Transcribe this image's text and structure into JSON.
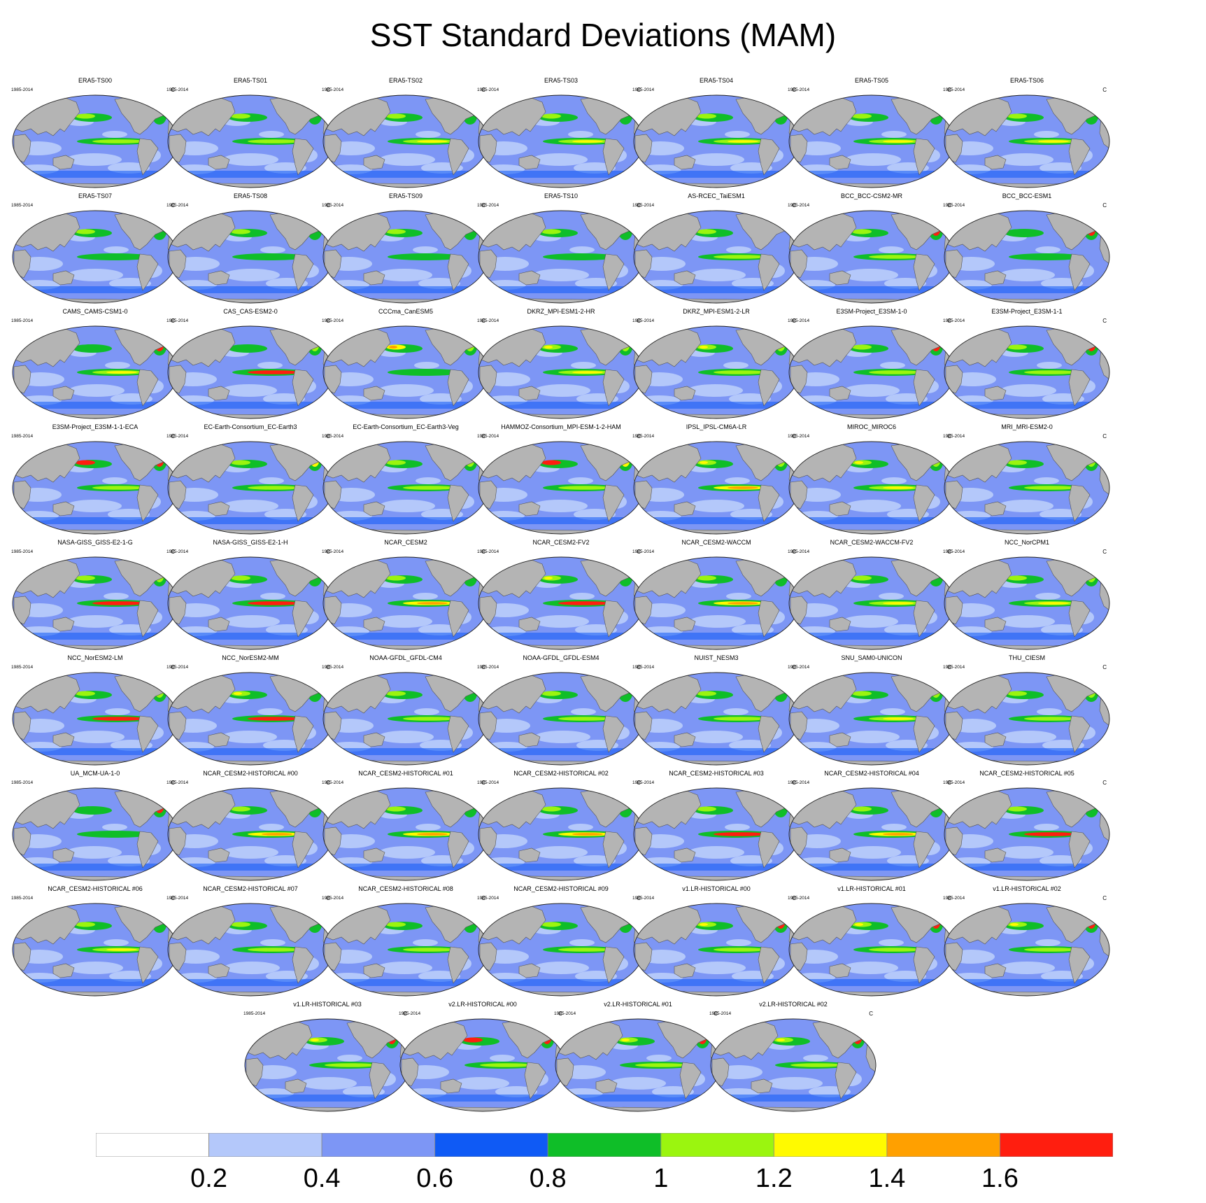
{
  "title": "SST Standard Deviations (MAM)",
  "panel_period": "1985-2014",
  "panel_units": "C",
  "colors": {
    "land": "#b4b4b4",
    "coast": "#555555",
    "levels": [
      "#ffffff",
      "#b4c8fa",
      "#7d96f5",
      "#0f5af5",
      "#0fbe28",
      "#9bf50f",
      "#fffa00",
      "#ffa000",
      "#ff1e0f"
    ]
  },
  "chart_data": {
    "type": "heatmap",
    "description_type": "small-multiple global SST standard deviation maps",
    "panels": [
      {
        "name": "ERA5-TS00",
        "enso": 1.0,
        "kuro": 1.0,
        "atl": 0.8
      },
      {
        "name": "ERA5-TS01",
        "enso": 1.0,
        "kuro": 1.0,
        "atl": 0.8
      },
      {
        "name": "ERA5-TS02",
        "enso": 1.2,
        "kuro": 1.0,
        "atl": 0.8
      },
      {
        "name": "ERA5-TS03",
        "enso": 1.2,
        "kuro": 1.0,
        "atl": 0.8
      },
      {
        "name": "ERA5-TS04",
        "enso": 1.2,
        "kuro": 1.0,
        "atl": 0.8
      },
      {
        "name": "ERA5-TS05",
        "enso": 1.2,
        "kuro": 1.0,
        "atl": 0.8
      },
      {
        "name": "ERA5-TS06",
        "enso": 1.2,
        "kuro": 1.0,
        "atl": 0.8
      },
      {
        "name": "ERA5-TS07",
        "enso": 0.8,
        "kuro": 1.0,
        "atl": 0.8
      },
      {
        "name": "ERA5-TS08",
        "enso": 0.8,
        "kuro": 1.0,
        "atl": 0.8
      },
      {
        "name": "ERA5-TS09",
        "enso": 0.8,
        "kuro": 1.0,
        "atl": 0.8
      },
      {
        "name": "ERA5-TS10",
        "enso": 0.8,
        "kuro": 1.0,
        "atl": 0.8
      },
      {
        "name": "AS-RCEC_TaiESM1",
        "enso": 1.0,
        "kuro": 1.0,
        "atl": 0.6
      },
      {
        "name": "BCC_BCC-CSM2-MR",
        "enso": 1.0,
        "kuro": 1.0,
        "atl": 1.6
      },
      {
        "name": "BCC_BCC-ESM1",
        "enso": 0.8,
        "kuro": 0.8,
        "atl": 1.6
      },
      {
        "name": "CAMS_CAMS-CSM1-0",
        "enso": 1.2,
        "kuro": 0.8,
        "atl": 1.8
      },
      {
        "name": "CAS_CAS-ESM2-0",
        "enso": 1.6,
        "kuro": 0.8,
        "atl": 1.0
      },
      {
        "name": "CCCma_CanESM5",
        "enso": 0.8,
        "kuro": 1.4,
        "atl": 1.0
      },
      {
        "name": "DKRZ_MPI-ESM1-2-HR",
        "enso": 1.2,
        "kuro": 1.2,
        "atl": 1.2
      },
      {
        "name": "DKRZ_MPI-ESM1-2-LR",
        "enso": 1.0,
        "kuro": 1.2,
        "atl": 1.2
      },
      {
        "name": "E3SM-Project_E3SM-1-0",
        "enso": 1.0,
        "kuro": 1.0,
        "atl": 1.6
      },
      {
        "name": "E3SM-Project_E3SM-1-1",
        "enso": 1.0,
        "kuro": 1.0,
        "atl": 1.8
      },
      {
        "name": "E3SM-Project_E3SM-1-1-ECA",
        "enso": 1.0,
        "kuro": 1.8,
        "atl": 1.6
      },
      {
        "name": "EC-Earth-Consortium_EC-Earth3",
        "enso": 1.0,
        "kuro": 1.0,
        "atl": 1.4
      },
      {
        "name": "EC-Earth-Consortium_EC-Earth3-Veg",
        "enso": 1.0,
        "kuro": 1.0,
        "atl": 1.2
      },
      {
        "name": "HAMMOZ-Consortium_MPI-ESM-1-2-HAM",
        "enso": 1.0,
        "kuro": 1.6,
        "atl": 1.4
      },
      {
        "name": "IPSL_IPSL-CM6A-LR",
        "enso": 1.4,
        "kuro": 1.2,
        "atl": 1.2
      },
      {
        "name": "MIROC_MIROC6",
        "enso": 1.2,
        "kuro": 1.2,
        "atl": 1.0
      },
      {
        "name": "MRI_MRI-ESM2-0",
        "enso": 1.0,
        "kuro": 1.0,
        "atl": 1.2
      },
      {
        "name": "NASA-GISS_GISS-E2-1-G",
        "enso": 1.8,
        "kuro": 1.0,
        "atl": 1.0
      },
      {
        "name": "NASA-GISS_GISS-E2-1-H",
        "enso": 1.8,
        "kuro": 1.0,
        "atl": 0.8
      },
      {
        "name": "NCAR_CESM2",
        "enso": 1.4,
        "kuro": 1.0,
        "atl": 0.8
      },
      {
        "name": "NCAR_CESM2-FV2",
        "enso": 1.8,
        "kuro": 1.2,
        "atl": 0.8
      },
      {
        "name": "NCAR_CESM2-WACCM",
        "enso": 1.4,
        "kuro": 1.0,
        "atl": 0.8
      },
      {
        "name": "NCAR_CESM2-WACCM-FV2",
        "enso": 1.2,
        "kuro": 1.0,
        "atl": 0.8
      },
      {
        "name": "NCC_NorCPM1",
        "enso": 1.2,
        "kuro": 1.0,
        "atl": 1.0
      },
      {
        "name": "NCC_NorESM2-LM",
        "enso": 1.8,
        "kuro": 1.0,
        "atl": 1.2
      },
      {
        "name": "NCC_NorESM2-MM",
        "enso": 1.8,
        "kuro": 1.2,
        "atl": 0.8
      },
      {
        "name": "NOAA-GFDL_GFDL-CM4",
        "enso": 1.0,
        "kuro": 1.0,
        "atl": 0.8
      },
      {
        "name": "NOAA-GFDL_GFDL-ESM4",
        "enso": 1.0,
        "kuro": 1.0,
        "atl": 0.8
      },
      {
        "name": "NUIST_NESM3",
        "enso": 1.0,
        "kuro": 1.0,
        "atl": 0.8
      },
      {
        "name": "SNU_SAM0-UNICON",
        "enso": 1.2,
        "kuro": 1.0,
        "atl": 1.0
      },
      {
        "name": "THU_CIESM",
        "enso": 1.0,
        "kuro": 1.0,
        "atl": 1.2
      },
      {
        "name": "UA_MCM-UA-1-0",
        "enso": 0.8,
        "kuro": 0.8,
        "atl": 1.8
      },
      {
        "name": "NCAR_CESM2-HISTORICAL_#00",
        "enso": 1.4,
        "kuro": 1.0,
        "atl": 0.8
      },
      {
        "name": "NCAR_CESM2-HISTORICAL_#01",
        "enso": 1.4,
        "kuro": 1.0,
        "atl": 0.8
      },
      {
        "name": "NCAR_CESM2-HISTORICAL_#02",
        "enso": 1.4,
        "kuro": 1.0,
        "atl": 0.8
      },
      {
        "name": "NCAR_CESM2-HISTORICAL_#03",
        "enso": 1.8,
        "kuro": 1.0,
        "atl": 0.8
      },
      {
        "name": "NCAR_CESM2-HISTORICAL_#04",
        "enso": 1.4,
        "kuro": 1.0,
        "atl": 0.8
      },
      {
        "name": "NCAR_CESM2-HISTORICAL_#05",
        "enso": 1.6,
        "kuro": 1.0,
        "atl": 0.8
      },
      {
        "name": "NCAR_CESM2-HISTORICAL_#06",
        "enso": 1.2,
        "kuro": 1.0,
        "atl": 0.8
      },
      {
        "name": "NCAR_CESM2-HISTORICAL_#07",
        "enso": 1.0,
        "kuro": 1.0,
        "atl": 0.8
      },
      {
        "name": "NCAR_CESM2-HISTORICAL_#08",
        "enso": 1.0,
        "kuro": 1.0,
        "atl": 0.8
      },
      {
        "name": "NCAR_CESM2-HISTORICAL_#09",
        "enso": 1.0,
        "kuro": 1.0,
        "atl": 0.8
      },
      {
        "name": "v1.LR-HISTORICAL_#00",
        "enso": 1.0,
        "kuro": 1.2,
        "atl": 1.8
      },
      {
        "name": "v1.LR-HISTORICAL_#01",
        "enso": 1.0,
        "kuro": 1.2,
        "atl": 1.8
      },
      {
        "name": "v1.LR-HISTORICAL_#02",
        "enso": 1.0,
        "kuro": 1.2,
        "atl": 1.8
      },
      {
        "name": "v1.LR-HISTORICAL_#03",
        "enso": 1.0,
        "kuro": 1.2,
        "atl": 1.8
      },
      {
        "name": "v2.LR-HISTORICAL_#00",
        "enso": 1.0,
        "kuro": 1.6,
        "atl": 1.8
      },
      {
        "name": "v2.LR-HISTORICAL_#01",
        "enso": 1.0,
        "kuro": 1.2,
        "atl": 1.8
      },
      {
        "name": "v2.LR-HISTORICAL_#02",
        "enso": 1.0,
        "kuro": 1.2,
        "atl": 1.8
      }
    ],
    "colorbar": {
      "levels": [
        0.2,
        0.4,
        0.6,
        0.8,
        1,
        1.2,
        1.4,
        1.6
      ],
      "tick_labels": [
        "0.2",
        "0.4",
        "0.6",
        "0.8",
        "1",
        "1.2",
        "1.4",
        "1.6"
      ],
      "units": "C"
    }
  }
}
